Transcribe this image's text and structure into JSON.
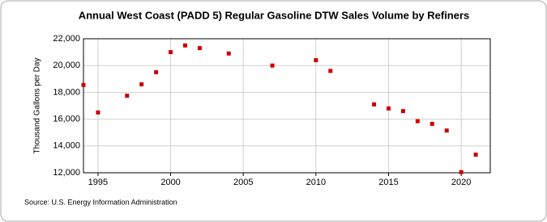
{
  "chart_data": {
    "type": "scatter",
    "title": "Annual West Coast (PADD 5) Regular Gasoline DTW Sales Volume by Refiners",
    "y_label": "Thousand Gallons per Day",
    "source": "Source: U.S. Energy Information Administration",
    "series": [
      {
        "name": "West Coast (PADD 5) Regular Gasoline DTW Sales Volume by Refiners",
        "color": "#cc0000",
        "x": [
          1994,
          1995,
          1997,
          1998,
          1999,
          2000,
          2001,
          2002,
          2004,
          2007,
          2010,
          2011,
          2014,
          2015,
          2016,
          2017,
          2018,
          2019,
          2020,
          2021
        ],
        "values": [
          18550,
          16500,
          17750,
          18600,
          19500,
          21000,
          21500,
          21300,
          20900,
          20000,
          20400,
          19600,
          17100,
          16800,
          16600,
          15850,
          15650,
          15150,
          12050,
          13350
        ]
      }
    ],
    "xlim": [
      1994,
      2022
    ],
    "xticks": [
      1995,
      2000,
      2005,
      2010,
      2015,
      2020
    ],
    "ylim": [
      12000,
      22000
    ],
    "yticks": [
      {
        "value": 12000,
        "label": "12,000"
      },
      {
        "value": 14000,
        "label": "14,000"
      },
      {
        "value": 16000,
        "label": "16,000"
      },
      {
        "value": 18000,
        "label": "18,000"
      },
      {
        "value": 20000,
        "label": "20,000"
      },
      {
        "value": 22000,
        "label": "22,000"
      }
    ],
    "grid": true
  }
}
